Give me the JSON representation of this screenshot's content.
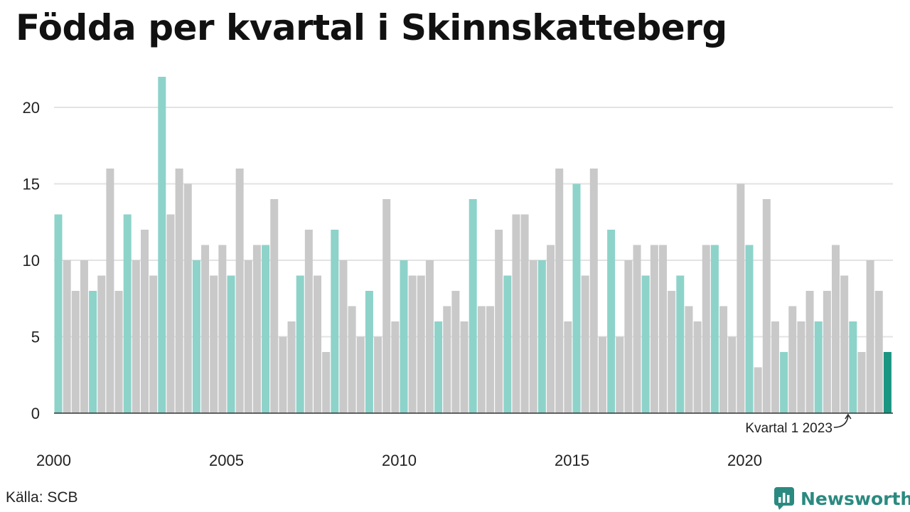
{
  "title": "Födda per kvartal i Skinnskatteberg",
  "source": "Källa: SCB",
  "brand": {
    "name": "Newsworthy",
    "icon": "newsworthy-logo-icon"
  },
  "colors": {
    "q1": "#8dd3ca",
    "other": "#c9c9c9",
    "latest": "#1a9683",
    "grid": "#e3e3e3",
    "axis": "#333333"
  },
  "chart_data": {
    "type": "bar",
    "title": "Födda per kvartal i Skinnskatteberg",
    "xlabel": "",
    "ylabel": "",
    "ylim": [
      0,
      23
    ],
    "y_ticks": [
      0,
      5,
      10,
      15,
      20
    ],
    "x_tick_labels": [
      "2000",
      "2005",
      "2010",
      "2015",
      "2020"
    ],
    "grid": true,
    "start": {
      "year": 2000,
      "quarter": 1
    },
    "values": [
      13,
      10,
      8,
      10,
      8,
      9,
      16,
      8,
      13,
      10,
      12,
      9,
      22,
      13,
      16,
      15,
      10,
      11,
      9,
      11,
      9,
      16,
      10,
      11,
      11,
      14,
      5,
      6,
      9,
      12,
      9,
      4,
      12,
      10,
      7,
      5,
      8,
      5,
      14,
      6,
      10,
      9,
      9,
      10,
      6,
      7,
      8,
      6,
      14,
      7,
      7,
      12,
      9,
      13,
      13,
      10,
      10,
      11,
      16,
      6,
      15,
      9,
      16,
      5,
      12,
      5,
      10,
      11,
      9,
      11,
      11,
      8,
      9,
      7,
      6,
      11,
      11,
      7,
      5,
      15,
      11,
      3,
      14,
      6,
      4,
      7,
      6,
      8,
      6,
      8,
      11,
      9,
      6,
      4,
      10,
      8,
      4
    ],
    "annotation": "Kvartal 1 2023"
  }
}
